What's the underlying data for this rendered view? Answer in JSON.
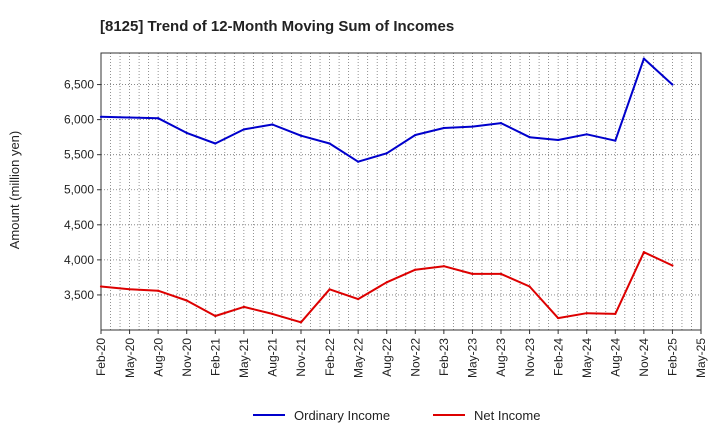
{
  "chart_data": {
    "type": "line",
    "title": "[8125]  Trend of 12-Month Moving Sum of Incomes",
    "xlabel": "",
    "ylabel": "Amount (million yen)",
    "ylim": [
      3000,
      6950
    ],
    "yticks": [
      3500,
      4000,
      4500,
      5000,
      5500,
      6000,
      6500
    ],
    "ytick_labels": [
      "3,500",
      "4,000",
      "4,500",
      "5,000",
      "5,500",
      "6,000",
      "6,500"
    ],
    "x_tick_labels": [
      "Feb-20",
      "May-20",
      "Aug-20",
      "Nov-20",
      "Feb-21",
      "May-21",
      "Aug-21",
      "Nov-21",
      "Feb-22",
      "May-22",
      "Aug-22",
      "Nov-22",
      "Feb-23",
      "May-23",
      "Aug-23",
      "Nov-23",
      "Feb-24",
      "May-24",
      "Aug-24",
      "Nov-24",
      "Feb-25",
      "May-25"
    ],
    "grid": true,
    "legend_position": "bottom-center",
    "series": [
      {
        "name": "Ordinary Income",
        "color": "#0000cc",
        "values": [
          6040,
          6030,
          6020,
          5810,
          5660,
          5860,
          5930,
          5770,
          5660,
          5400,
          5520,
          5780,
          5880,
          5900,
          5950,
          5750,
          5710,
          5790,
          5700,
          6870,
          6500
        ]
      },
      {
        "name": "Net Income",
        "color": "#dd0000",
        "values": [
          3620,
          3580,
          3560,
          3420,
          3200,
          3330,
          3230,
          3110,
          3580,
          3440,
          3680,
          3860,
          3910,
          3800,
          3800,
          3620,
          3170,
          3240,
          3230,
          4110,
          3920
        ]
      }
    ]
  }
}
